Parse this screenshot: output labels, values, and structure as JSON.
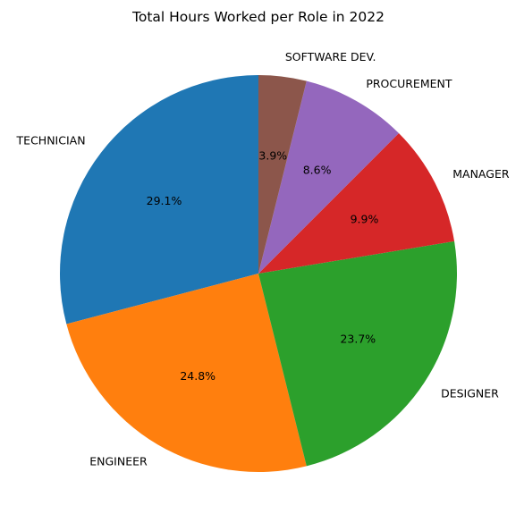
{
  "chart_data": {
    "type": "pie",
    "title": "Total Hours Worked per Role in 2022",
    "start_angle_deg": 90,
    "direction": "counterclockwise",
    "slices": [
      {
        "label": "TECHNICIAN",
        "value": 29.1,
        "pct_label": "29.1%",
        "color": "#1f77b4"
      },
      {
        "label": "ENGINEER",
        "value": 24.8,
        "pct_label": "24.8%",
        "color": "#ff7f0e"
      },
      {
        "label": "DESIGNER",
        "value": 23.7,
        "pct_label": "23.7%",
        "color": "#2ca02c"
      },
      {
        "label": "MANAGER",
        "value": 9.9,
        "pct_label": "9.9%",
        "color": "#d62728"
      },
      {
        "label": "PROCUREMENT",
        "value": 8.6,
        "pct_label": "8.6%",
        "color": "#9467bd"
      },
      {
        "label": "SOFTWARE DEV.",
        "value": 3.9,
        "pct_label": "3.9%",
        "color": "#8c564b"
      }
    ]
  }
}
